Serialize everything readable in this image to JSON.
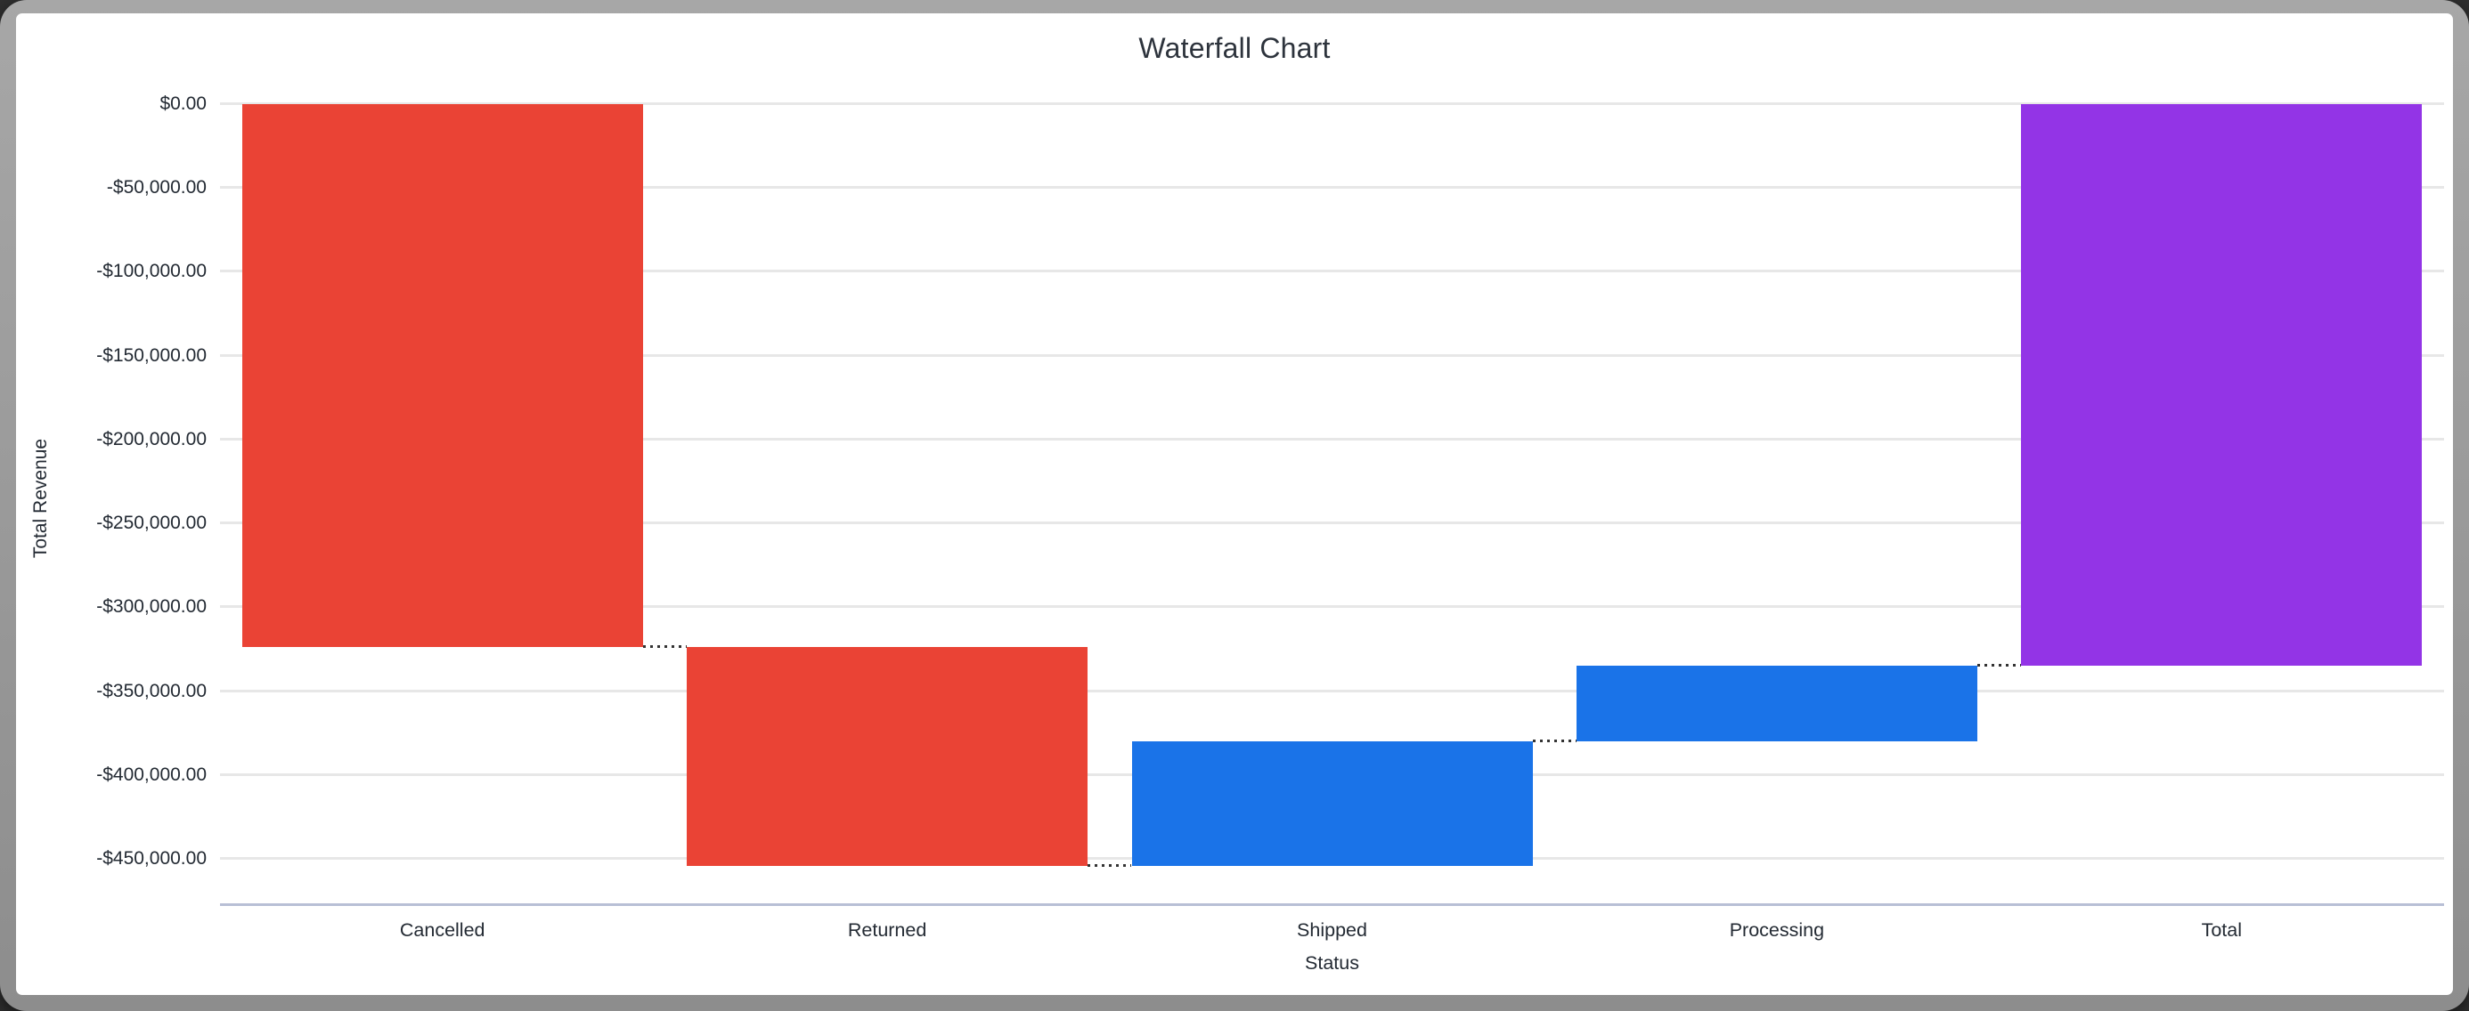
{
  "window": {
    "frame_color": "#9d9d9d",
    "surface_color": "#ffffff"
  },
  "chart_data": {
    "type": "waterfall",
    "title": "Waterfall Chart",
    "xlabel": "Status",
    "ylabel": "Total Revenue",
    "categories": [
      "Cancelled",
      "Returned",
      "Shipped",
      "Processing",
      "Total"
    ],
    "segments": [
      {
        "label": "Cancelled",
        "value": -323700,
        "start": 0,
        "end": -323700,
        "color": "#EA4335",
        "kind": "decrease"
      },
      {
        "label": "Returned",
        "value": -130500,
        "start": -323700,
        "end": -454200,
        "color": "#EA4335",
        "kind": "decrease"
      },
      {
        "label": "Shipped",
        "value": 74200,
        "start": -454200,
        "end": -380000,
        "color": "#1A73E8",
        "kind": "increase"
      },
      {
        "label": "Processing",
        "value": 45100,
        "start": -380000,
        "end": -334900,
        "color": "#1A73E8",
        "kind": "increase"
      },
      {
        "label": "Total",
        "value": -334900,
        "start": 0,
        "end": -334900,
        "color": "#9334E6",
        "kind": "total"
      }
    ],
    "y_ticks": [
      {
        "value": 0,
        "label": "$0.00"
      },
      {
        "value": -50000,
        "label": "-$50,000.00"
      },
      {
        "value": -100000,
        "label": "-$100,000.00"
      },
      {
        "value": -150000,
        "label": "-$150,000.00"
      },
      {
        "value": -200000,
        "label": "-$200,000.00"
      },
      {
        "value": -250000,
        "label": "-$250,000.00"
      },
      {
        "value": -300000,
        "label": "-$300,000.00"
      },
      {
        "value": -350000,
        "label": "-$350,000.00"
      },
      {
        "value": -400000,
        "label": "-$400,000.00"
      },
      {
        "value": -450000,
        "label": "-$450,000.00"
      }
    ],
    "ylim": [
      -477500,
      0
    ],
    "grid": true,
    "legend": "none",
    "styles": {
      "decrease_color": "#EA4335",
      "increase_color": "#1A73E8",
      "total_color": "#9334E6",
      "gridline_color": "#E7E7E7",
      "baseline_color": "#B8BFD5",
      "connector_color": "#333333",
      "axis_label_color": "#232A33",
      "title_color": "#2D333C"
    }
  }
}
